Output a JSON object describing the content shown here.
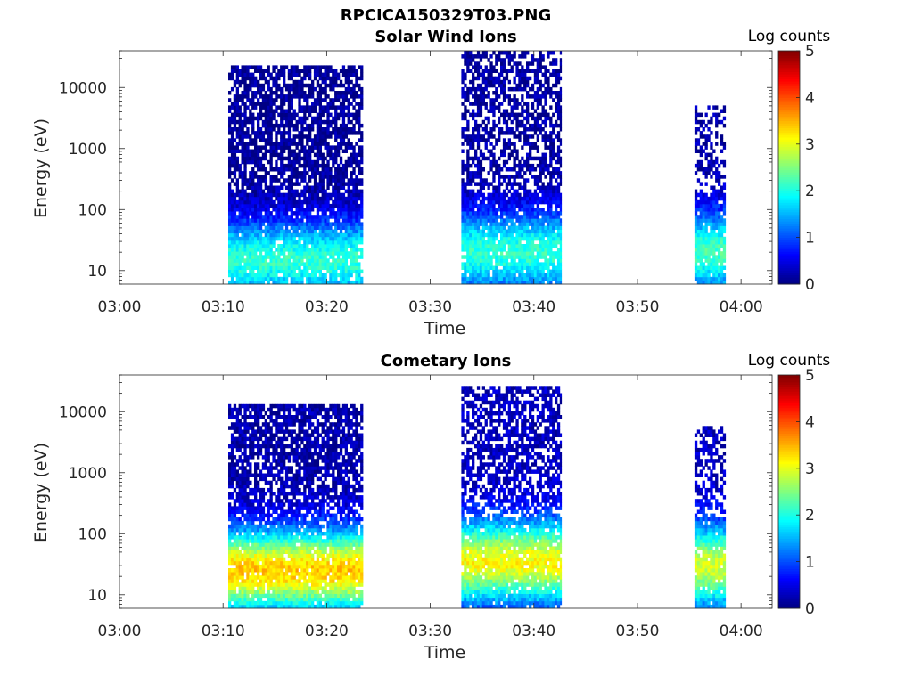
{
  "figure_title": "RPCICA150329T03.PNG",
  "colors": {
    "colormap": "jet",
    "axis": "#262626",
    "background": "#ffffff"
  },
  "chart_data": [
    {
      "type": "heatmap",
      "title": "Solar Wind Ions",
      "xlabel": "Time",
      "ylabel": "Energy (eV)",
      "yscale": "log",
      "ylim": [
        6,
        40000
      ],
      "xlim": [
        "03:00",
        "04:03"
      ],
      "xticks": [
        "03:00",
        "03:10",
        "03:20",
        "03:30",
        "03:40",
        "03:50",
        "04:00"
      ],
      "yticks": [
        "10",
        "100",
        "1000",
        "10000"
      ],
      "colorbar": {
        "label": "Log counts",
        "min": 0,
        "max": 5,
        "ticks": [
          "0",
          "1",
          "2",
          "3",
          "4",
          "5"
        ]
      },
      "grid": false,
      "blocks": [
        {
          "start": "03:10:30",
          "end": "03:23:30",
          "emax": 22000,
          "floor": 0.1,
          "peak": 2.1,
          "peak_e": 15,
          "fill": 0.75
        },
        {
          "start": "03:33:00",
          "end": "03:42:40",
          "emax": 38000,
          "floor": 0.15,
          "peak": 2.1,
          "peak_e": 20,
          "fill": 0.6
        },
        {
          "start": "03:55:30",
          "end": "03:58:30",
          "emax": 5000,
          "floor": 0.2,
          "peak": 2.2,
          "peak_e": 20,
          "fill": 0.45
        }
      ]
    },
    {
      "type": "heatmap",
      "title": "Cometary Ions",
      "xlabel": "Time",
      "ylabel": "Energy (eV)",
      "yscale": "log",
      "ylim": [
        6,
        40000
      ],
      "xlim": [
        "03:00",
        "04:03"
      ],
      "xticks": [
        "03:00",
        "03:10",
        "03:20",
        "03:30",
        "03:40",
        "03:50",
        "04:00"
      ],
      "yticks": [
        "10",
        "100",
        "1000",
        "10000"
      ],
      "colorbar": {
        "label": "Log counts",
        "min": 0,
        "max": 5,
        "ticks": [
          "0",
          "1",
          "2",
          "3",
          "4",
          "5"
        ]
      },
      "grid": false,
      "blocks": [
        {
          "start": "03:10:30",
          "end": "03:23:30",
          "emax": 13000,
          "floor": 0.2,
          "peak": 3.4,
          "peak_e": 25,
          "fill": 0.75
        },
        {
          "start": "03:33:00",
          "end": "03:42:40",
          "emax": 26000,
          "floor": 0.3,
          "peak": 3.1,
          "peak_e": 35,
          "fill": 0.65
        },
        {
          "start": "03:55:30",
          "end": "03:58:30",
          "emax": 6000,
          "floor": 0.3,
          "peak": 2.9,
          "peak_e": 30,
          "fill": 0.55
        }
      ]
    }
  ]
}
